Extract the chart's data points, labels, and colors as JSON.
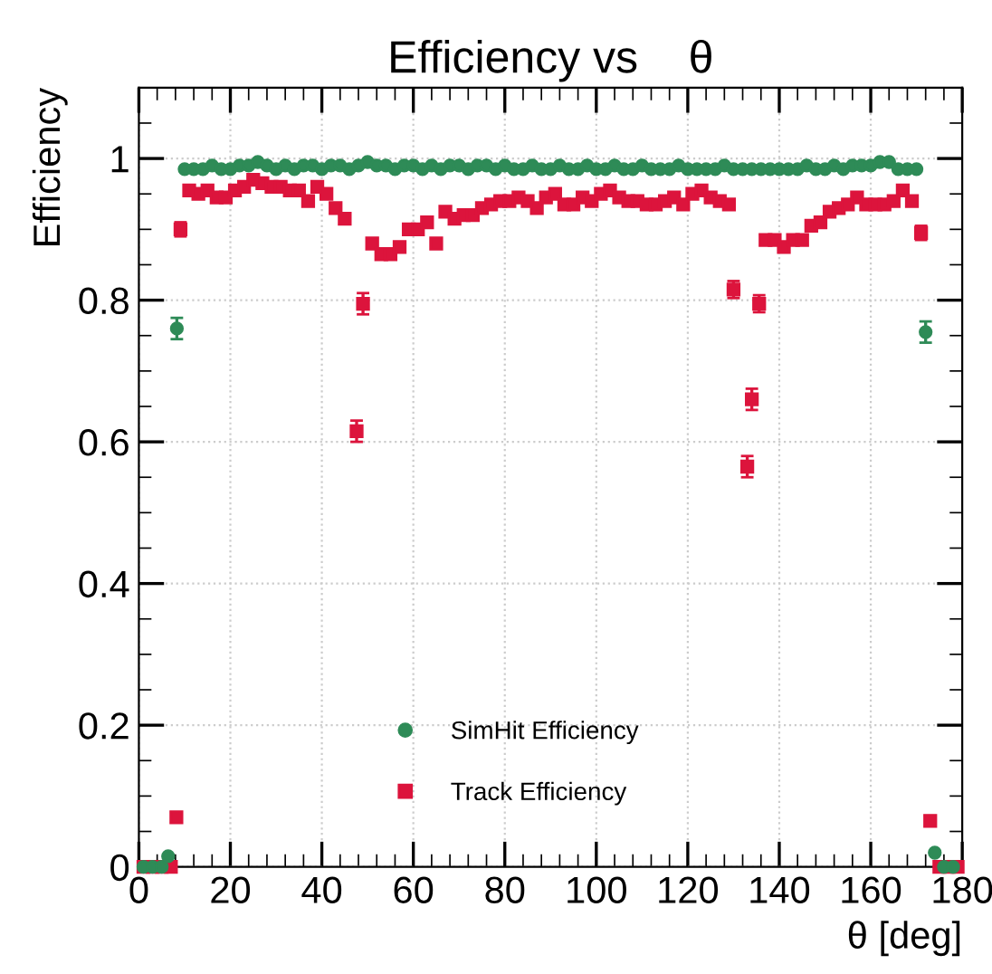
{
  "chart_data": {
    "type": "scatter",
    "title": "Efficiency vs    θ",
    "xlabel": "θ [deg]",
    "ylabel": "Efficiency",
    "xlim": [
      0,
      180
    ],
    "ylim": [
      0,
      1.1
    ],
    "xticks": [
      0,
      20,
      40,
      60,
      80,
      100,
      120,
      140,
      160,
      180
    ],
    "yticks": [
      0,
      0.2,
      0.4,
      0.6,
      0.8,
      1
    ],
    "grid": true,
    "legend": "bottom",
    "series": [
      {
        "name": "SimHit Efficiency",
        "color": "#2e8b57",
        "marker": "circle",
        "x": [
          1,
          3,
          5,
          6.4,
          8.3,
          10,
          12,
          14,
          16,
          18,
          20,
          22,
          24,
          26,
          28,
          30,
          32,
          34,
          36,
          38,
          40,
          42,
          44,
          46,
          48,
          50,
          52,
          54,
          56,
          58,
          60,
          62,
          64,
          66,
          68,
          70,
          72,
          74,
          76,
          78,
          80,
          82,
          84,
          86,
          88,
          90,
          92,
          94,
          96,
          98,
          100,
          102,
          104,
          106,
          108,
          110,
          112,
          114,
          116,
          118,
          120,
          122,
          124,
          126,
          128,
          130,
          132,
          134,
          136,
          138,
          140,
          142,
          144,
          146,
          148,
          150,
          152,
          154,
          156,
          158,
          160,
          162,
          164,
          166,
          168,
          170,
          172,
          174,
          176,
          178
        ],
        "values": [
          0,
          0,
          0,
          0.015,
          0.76,
          0.985,
          0.985,
          0.985,
          0.99,
          0.985,
          0.985,
          0.99,
          0.99,
          0.995,
          0.99,
          0.985,
          0.99,
          0.985,
          0.99,
          0.99,
          0.985,
          0.99,
          0.99,
          0.985,
          0.99,
          0.995,
          0.99,
          0.99,
          0.985,
          0.99,
          0.99,
          0.985,
          0.99,
          0.985,
          0.99,
          0.99,
          0.985,
          0.99,
          0.99,
          0.985,
          0.99,
          0.985,
          0.985,
          0.99,
          0.985,
          0.985,
          0.99,
          0.985,
          0.985,
          0.99,
          0.985,
          0.985,
          0.99,
          0.985,
          0.985,
          0.99,
          0.985,
          0.985,
          0.985,
          0.99,
          0.985,
          0.985,
          0.985,
          0.985,
          0.99,
          0.985,
          0.985,
          0.985,
          0.985,
          0.985,
          0.985,
          0.985,
          0.985,
          0.99,
          0.985,
          0.985,
          0.99,
          0.985,
          0.99,
          0.99,
          0.99,
          0.995,
          0.995,
          0.985,
          0.985,
          0.985,
          0.755,
          0.02,
          0,
          0
        ],
        "errors": [
          null,
          null,
          null,
          null,
          0.015,
          null,
          null,
          null,
          null,
          null,
          null,
          null,
          null,
          null,
          null,
          null,
          null,
          null,
          null,
          null,
          null,
          null,
          null,
          null,
          null,
          null,
          null,
          null,
          null,
          null,
          null,
          null,
          null,
          null,
          null,
          null,
          null,
          null,
          null,
          null,
          null,
          null,
          null,
          null,
          null,
          null,
          null,
          null,
          null,
          null,
          null,
          null,
          null,
          null,
          null,
          null,
          null,
          null,
          null,
          null,
          null,
          null,
          null,
          null,
          null,
          null,
          null,
          null,
          null,
          null,
          null,
          null,
          null,
          null,
          null,
          null,
          null,
          null,
          null,
          null,
          null,
          null,
          null,
          null,
          null,
          null,
          0.015,
          null,
          null,
          null
        ]
      },
      {
        "name": "Track Efficiency",
        "color": "#dc143c",
        "marker": "square",
        "x": [
          1,
          3,
          5,
          7,
          8.2,
          9.1,
          11,
          13,
          15,
          17,
          19,
          21,
          23,
          25,
          27,
          29,
          31,
          33,
          35,
          37,
          39,
          41,
          43,
          45,
          47.6,
          49,
          51,
          53,
          55,
          57,
          59,
          61,
          63,
          65,
          67,
          69,
          71,
          73,
          75,
          77,
          79,
          81,
          83,
          85,
          87,
          89,
          91,
          93,
          95,
          97,
          99,
          101,
          103,
          105,
          107,
          109,
          111,
          113,
          115,
          117,
          119,
          121,
          123,
          125,
          127,
          129,
          130,
          133,
          134,
          135.6,
          137,
          139,
          141,
          143,
          145,
          147,
          149,
          151,
          153,
          155,
          157,
          159,
          161,
          163,
          165,
          167,
          169,
          171,
          173,
          175,
          177,
          179
        ],
        "values": [
          0,
          0,
          0,
          0,
          0.07,
          0.9,
          0.955,
          0.95,
          0.955,
          0.945,
          0.945,
          0.955,
          0.96,
          0.97,
          0.965,
          0.96,
          0.96,
          0.955,
          0.955,
          0.94,
          0.96,
          0.95,
          0.93,
          0.915,
          0.615,
          0.795,
          0.88,
          0.865,
          0.865,
          0.875,
          0.9,
          0.9,
          0.91,
          0.88,
          0.925,
          0.915,
          0.92,
          0.92,
          0.93,
          0.935,
          0.94,
          0.94,
          0.945,
          0.94,
          0.93,
          0.945,
          0.95,
          0.935,
          0.935,
          0.945,
          0.94,
          0.95,
          0.955,
          0.945,
          0.94,
          0.94,
          0.935,
          0.935,
          0.94,
          0.945,
          0.935,
          0.95,
          0.955,
          0.945,
          0.94,
          0.935,
          0.815,
          0.565,
          0.66,
          0.795,
          0.885,
          0.885,
          0.875,
          0.885,
          0.885,
          0.905,
          0.91,
          0.925,
          0.93,
          0.935,
          0.945,
          0.935,
          0.935,
          0.935,
          0.94,
          0.955,
          0.94,
          0.895,
          0.065,
          0,
          0,
          0
        ],
        "errors": [
          null,
          null,
          null,
          null,
          0.007,
          0.01,
          0.005,
          0.005,
          0.005,
          0.005,
          0.005,
          0.005,
          0.005,
          0.005,
          0.005,
          0.005,
          0.005,
          0.005,
          0.005,
          0.005,
          0.005,
          0.005,
          0.007,
          0.007,
          0.015,
          0.015,
          0.007,
          0.007,
          0.007,
          0.007,
          0.007,
          0.007,
          0.007,
          0.007,
          0.005,
          0.005,
          0.005,
          0.005,
          0.005,
          0.005,
          0.005,
          0.005,
          0.005,
          0.005,
          0.005,
          0.005,
          0.005,
          0.005,
          0.005,
          0.005,
          0.005,
          0.005,
          0.005,
          0.005,
          0.005,
          0.005,
          0.005,
          0.005,
          0.005,
          0.005,
          0.005,
          0.005,
          0.005,
          0.005,
          0.005,
          0.005,
          0.012,
          0.015,
          0.015,
          0.012,
          0.007,
          0.007,
          0.007,
          0.007,
          0.007,
          0.007,
          0.007,
          0.005,
          0.005,
          0.005,
          0.005,
          0.005,
          0.005,
          0.005,
          0.005,
          0.005,
          0.005,
          0.01,
          0.007,
          null,
          null,
          null
        ]
      }
    ]
  }
}
